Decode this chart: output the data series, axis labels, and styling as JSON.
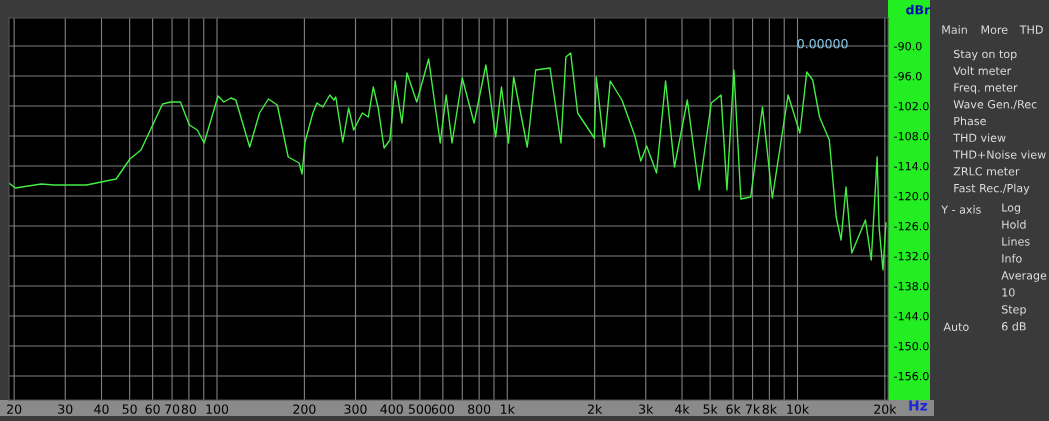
{
  "chart_data": [
    {
      "type": "line",
      "xlabel": "Hz",
      "ylabel": "dBr",
      "annotations": [
        "0.00000"
      ],
      "log": "x",
      "grid": true,
      "legend": false,
      "marker": "none",
      "line_style": "solid",
      "xlim": [
        19.2,
        20500
      ],
      "ylim": [
        -160.8,
        -84.4
      ],
      "xticks": [
        20,
        30,
        40,
        50,
        60,
        70,
        80,
        {
          "value": 90,
          "label": null
        },
        100,
        200,
        300,
        400,
        500,
        600,
        {
          "value": 700,
          "label": null
        },
        800,
        {
          "value": 900,
          "label": null
        },
        {
          "value": 1000,
          "label": "1k"
        },
        {
          "value": 2000,
          "label": "2k"
        },
        {
          "value": 3000,
          "label": "3k"
        },
        {
          "value": 4000,
          "label": "4k"
        },
        {
          "value": 5000,
          "label": "5k"
        },
        {
          "value": 6000,
          "label": "6k"
        },
        {
          "value": 7000,
          "label": "7k"
        },
        {
          "value": 8000,
          "label": "8k"
        },
        {
          "value": 9000,
          "label": null
        },
        {
          "value": 10000,
          "label": "10k"
        },
        {
          "value": 20000,
          "label": "20k"
        }
      ],
      "yticks": [
        {
          "value": -90,
          "label": "-90.0"
        },
        {
          "value": -96,
          "label": "-96.0"
        },
        {
          "value": -102,
          "label": "-102.0"
        },
        {
          "value": -108,
          "label": "-108.0"
        },
        {
          "value": -114,
          "label": "-114.0"
        },
        {
          "value": -120,
          "label": "-120.0"
        },
        {
          "value": -126,
          "label": "-126.0"
        },
        {
          "value": -132,
          "label": "-132.0"
        },
        {
          "value": -138,
          "label": "-138.0"
        },
        {
          "value": -144,
          "label": "-144.0"
        },
        {
          "value": -150,
          "label": "-150.0"
        },
        {
          "value": -156,
          "label": "-156.0"
        }
      ],
      "series": [
        {
          "color": "#44ee44",
          "x": [
            19.2,
            20.2,
            24.8,
            27.4,
            35.5,
            44.9,
            50.1,
            54.7,
            64.9,
            69.2,
            74.8,
            80.3,
            85.5,
            90.3,
            100.8,
            105.6,
            111.6,
            116.1,
            129.6,
            140.1,
            150.4,
            161.3,
            175.9,
            191.8,
            196.3,
            201,
            213.9,
            220.9,
            231.6,
            244.7,
            252.6,
            256.6,
            271.1,
            284.1,
            295.6,
            316.7,
            332.1,
            345.4,
            359.2,
            376.3,
            394.2,
            410.9,
            433.6,
            451.2,
            487.7,
            535.9,
            587.6,
            615.8,
            645.3,
            699.8,
            768.5,
            844,
            912,
            955,
            1010,
            1052,
            1172,
            1253,
            1404,
            1531,
            1592,
            1654,
            1748,
            1994,
            2026,
            2158,
            2263,
            2484,
            2752,
            2885,
            3021,
            3268,
            3511,
            3767,
            4173,
            4584,
            5044,
            5452,
            5713,
            6037,
            6380,
            6898,
            7574,
            8190,
            9280,
            10190,
            10760,
            11280,
            11910,
            12870,
            13170,
            13590,
            14130,
            14690,
            15380,
            17140,
            17950,
            18810,
            19100,
            19700,
            20170
          ],
          "values": [
            -117.4,
            -118.4,
            -117.6,
            -117.8,
            -117.8,
            -116.6,
            -112.6,
            -110.8,
            -101.6,
            -101.2,
            -101.2,
            -105.8,
            -106.8,
            -109.4,
            -100,
            -101.2,
            -100.4,
            -100.8,
            -110.2,
            -103.4,
            -100.6,
            -101.8,
            -112.2,
            -113.4,
            -115.6,
            -109.2,
            -103.4,
            -101.4,
            -102.2,
            -99.8,
            -100.8,
            -100.2,
            -109.2,
            -102.4,
            -106.8,
            -103.4,
            -104.2,
            -98.2,
            -102.4,
            -110.4,
            -108.8,
            -97,
            -105.4,
            -95.4,
            -101.2,
            -92.6,
            -109.4,
            -99.8,
            -109.4,
            -96.4,
            -105.4,
            -93.8,
            -108.2,
            -98.2,
            -109.4,
            -96.2,
            -110.2,
            -94.8,
            -94.4,
            -109.4,
            -92.2,
            -91.4,
            -103.4,
            -108.4,
            -96.2,
            -110.2,
            -97,
            -100.8,
            -108,
            -113,
            -110,
            -115.4,
            -97,
            -114.2,
            -100.8,
            -118.8,
            -101.4,
            -99.8,
            -118.8,
            -94.8,
            -120.6,
            -120.2,
            -102.2,
            -120.4,
            -99.8,
            -107.4,
            -95.2,
            -96.8,
            -104.2,
            -108.8,
            -115.4,
            -124.2,
            -128.8,
            -118.2,
            -131.4,
            -124.8,
            -132.8,
            -112.2,
            -126.2,
            -134.8,
            -125.4
          ]
        }
      ]
    },
    {
      "type": "other",
      "annotations": [
        "Main",
        "More",
        "THD",
        "Stay on top",
        "Volt meter",
        "Freq. meter",
        "Wave Gen./Rec",
        "Phase",
        "THD view",
        "THD+Noise view",
        "ZRLC meter",
        "Fast Rec./Play",
        "Y - axis",
        "Log",
        "Hold",
        "Lines",
        "Info",
        "Average",
        "10",
        "Step",
        "6 dB",
        "Auto"
      ]
    }
  ]
}
